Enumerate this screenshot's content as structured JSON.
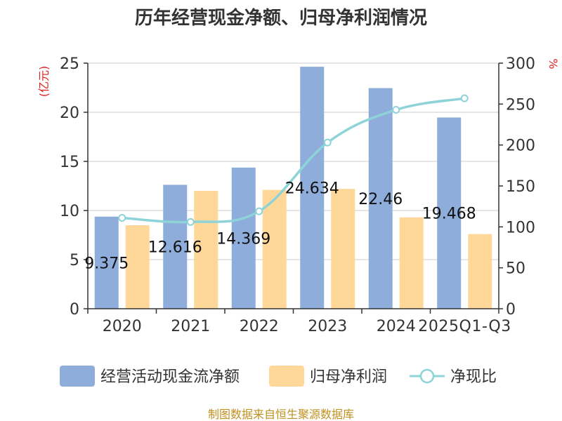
{
  "chart_data": {
    "type": "bar",
    "title": "历年经营现金净额、归母净利润情况",
    "categories": [
      "2020",
      "2021",
      "2022",
      "2023",
      "2024",
      "2025Q1-Q3"
    ],
    "series": [
      {
        "name": "经营活动现金流净额",
        "type": "bar",
        "axis": "left",
        "values": [
          9.375,
          12.616,
          14.369,
          24.634,
          22.46,
          19.468
        ]
      },
      {
        "name": "归母净利润",
        "type": "bar",
        "axis": "left",
        "values": [
          8.5,
          12.0,
          12.1,
          12.2,
          9.3,
          7.6
        ]
      },
      {
        "name": "净现比",
        "type": "line",
        "axis": "right",
        "values": [
          111,
          106,
          119,
          203,
          243,
          257
        ]
      }
    ],
    "data_labels": [
      "9.375",
      "12.616",
      "14.369",
      "24.634",
      "22.46",
      "19.468"
    ],
    "y_left": {
      "label": "(亿元)",
      "ylim": [
        0,
        25
      ],
      "ticks": [
        0,
        5,
        10,
        15,
        20,
        25
      ]
    },
    "y_right": {
      "label": "%",
      "ylim": [
        0,
        300
      ],
      "ticks": [
        0,
        50,
        100,
        150,
        200,
        250,
        300
      ]
    },
    "legend_position": "bottom",
    "grid": true
  },
  "source": "制图数据来自恒生聚源数据库",
  "colors": {
    "bar1": "#8eadda",
    "bar2": "#ffd899",
    "line": "#8dd3d8",
    "unit": "#e02020",
    "source": "#c09020",
    "grid": "#cccccc",
    "axis": "#333333"
  }
}
